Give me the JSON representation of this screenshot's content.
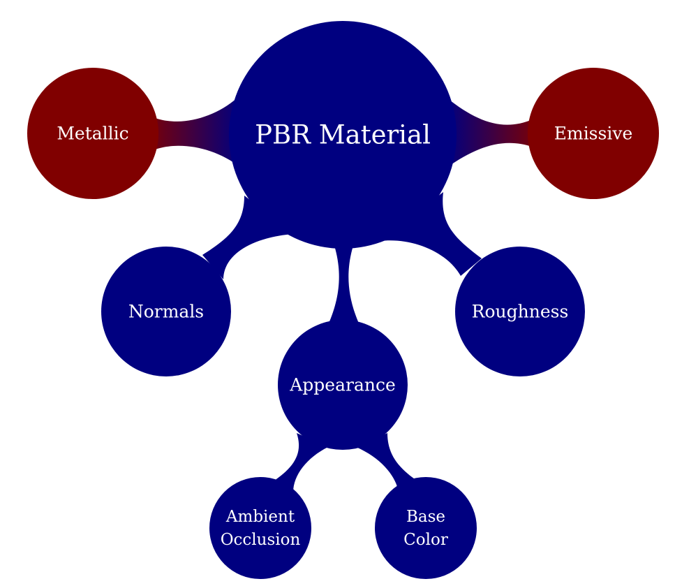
{
  "colors": {
    "primary": "#000080",
    "accent": "#800000",
    "label": "#ffffff",
    "background": "#ffffff"
  },
  "root": {
    "label": "PBR Material"
  },
  "nodes": {
    "metallic": {
      "label": "Metallic"
    },
    "emissive": {
      "label": "Emissive"
    },
    "normals": {
      "label": "Normals"
    },
    "roughness": {
      "label": "Roughness"
    },
    "appearance": {
      "label": "Appearance"
    },
    "ambient_occlusion": {
      "line1": "Ambient",
      "line2": "Occlusion"
    },
    "base_color": {
      "line1": "Base",
      "line2": "Color"
    }
  }
}
